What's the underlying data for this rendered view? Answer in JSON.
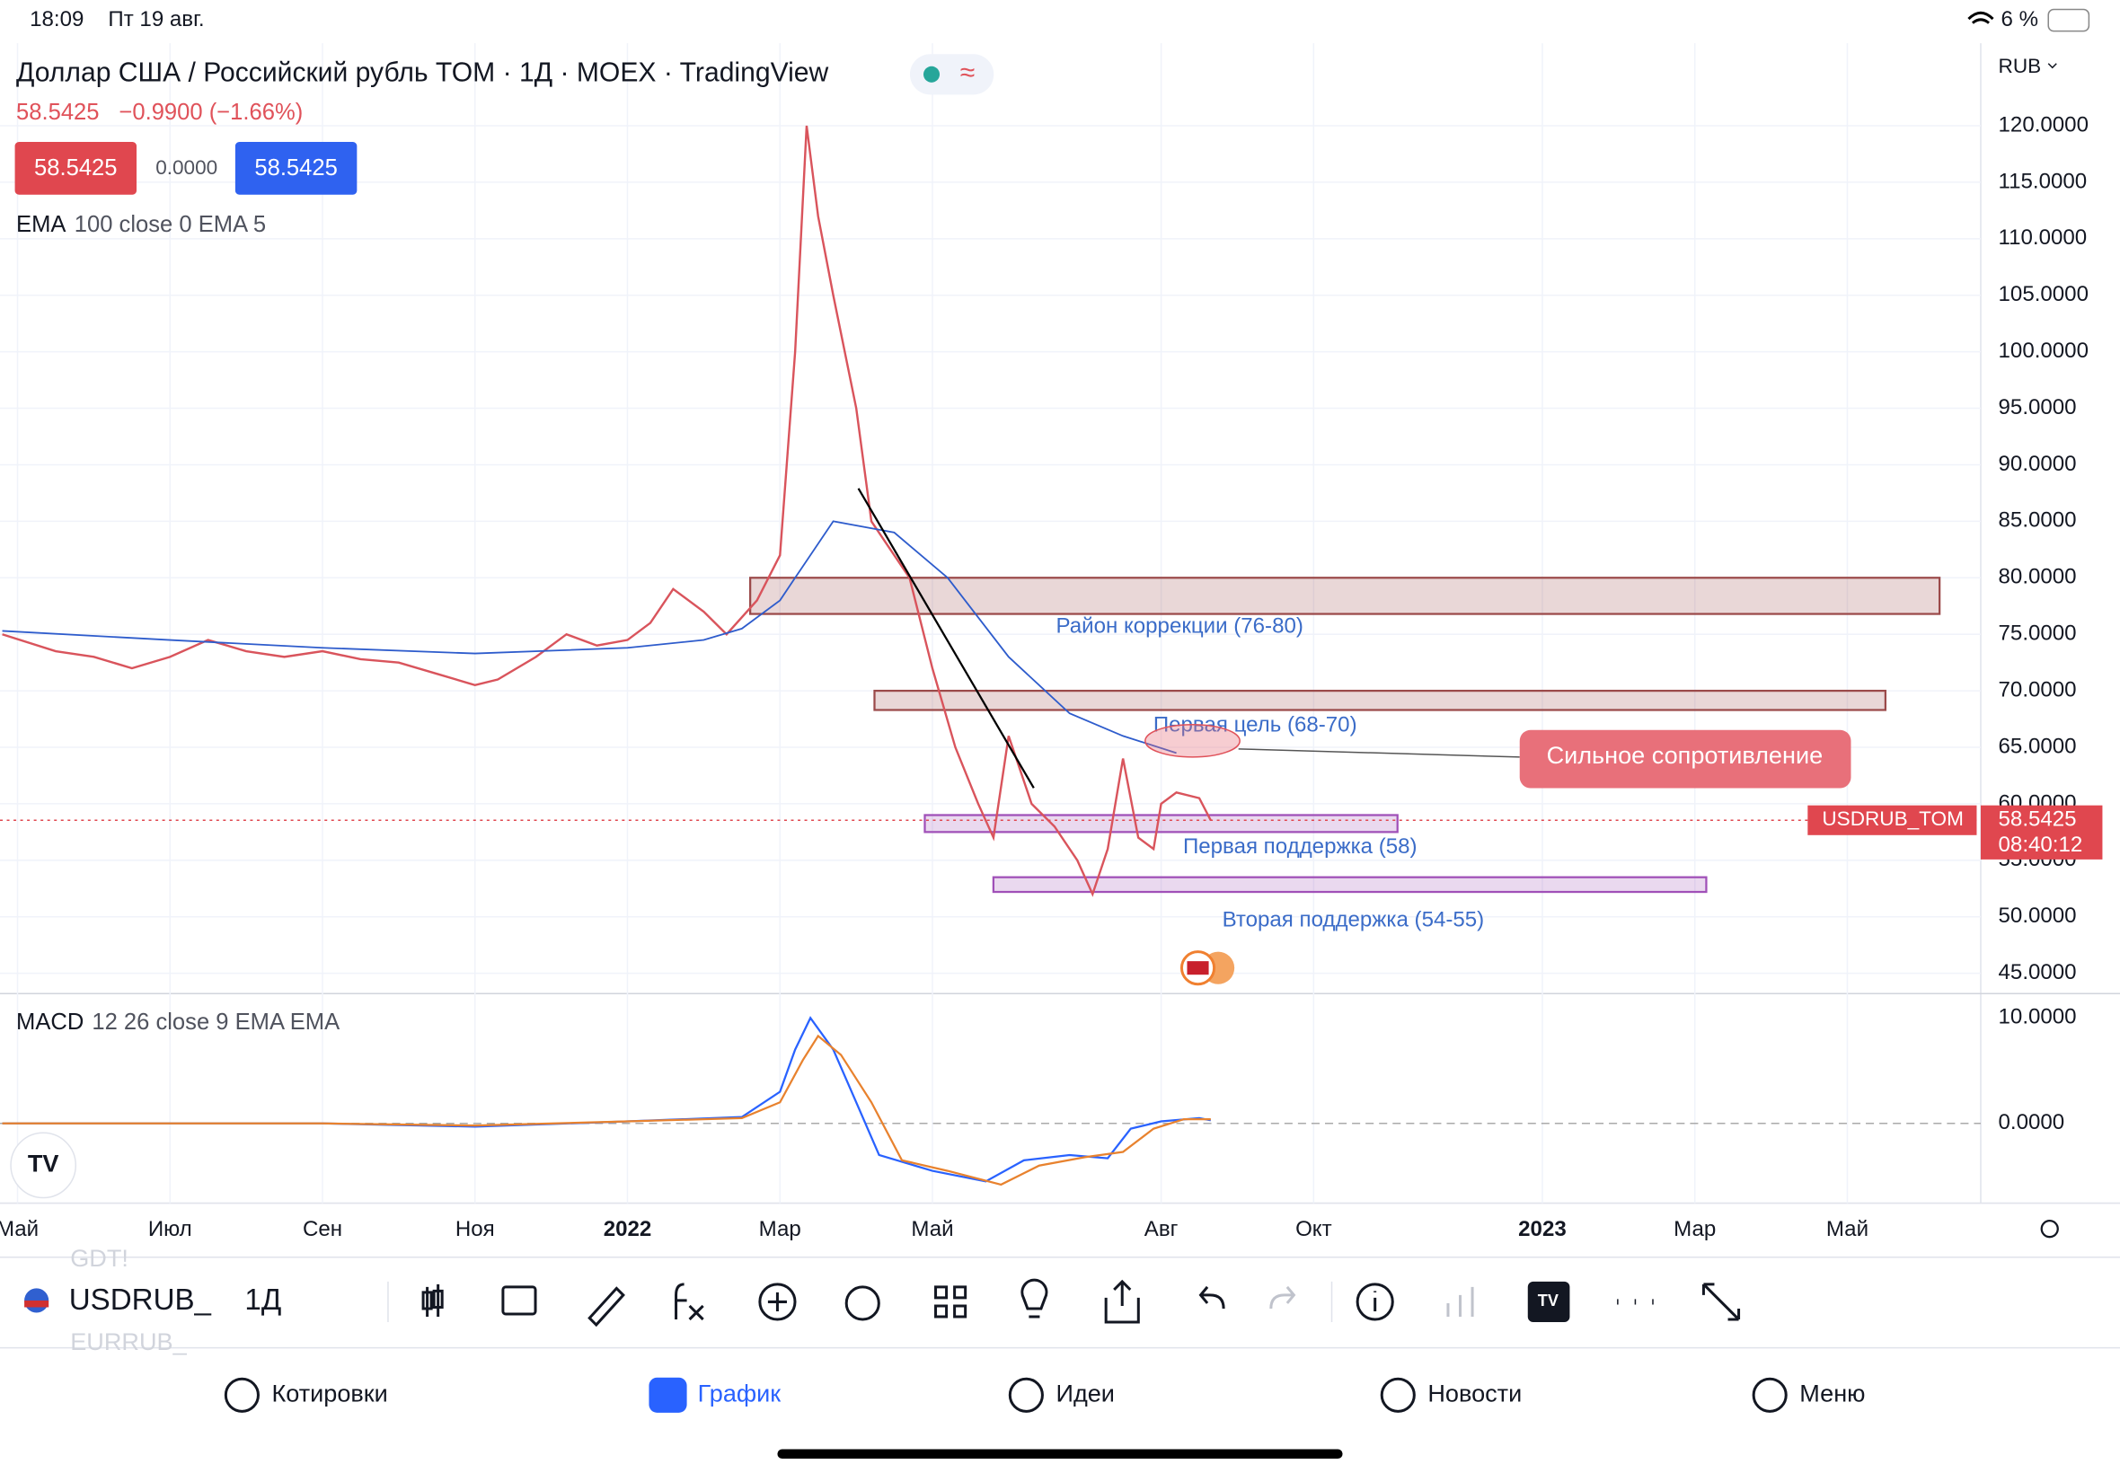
{
  "status_bar": {
    "time": "18:09",
    "date": "Пт 19 авг.",
    "battery": "6 %"
  },
  "chart_data": {
    "type": "line",
    "title": "Доллар США / Российский рубль TOM · 1Д · MOEX · TradingView",
    "last_price": 58.5425,
    "change": "−0.9900 (−1.66%)",
    "spread": "0.0000",
    "ema_name": "EMA",
    "ema_params": "100 close 0 EMA 5",
    "currency": "RUB",
    "symbol_label": "USDRUB_TOM",
    "countdown": "08:40:12",
    "xlim": [
      -0.23,
      25.75
    ],
    "xticks": [
      {
        "value": 0,
        "label": "Май"
      },
      {
        "value": 2,
        "label": "Июл"
      },
      {
        "value": 4,
        "label": "Сен"
      },
      {
        "value": 6,
        "label": "Ноя"
      },
      {
        "value": 8,
        "label": "2022"
      },
      {
        "value": 10,
        "label": "Мар"
      },
      {
        "value": 12,
        "label": "Май"
      },
      {
        "value": 15,
        "label": "Авг"
      },
      {
        "value": 17,
        "label": "Окт"
      },
      {
        "value": 20,
        "label": "2023"
      },
      {
        "value": 22,
        "label": "Мар"
      },
      {
        "value": 24,
        "label": "Май"
      }
    ],
    "ylim": [
      43.2,
      127.3
    ],
    "yticks": [
      {
        "value": 45,
        "label": "45.0000"
      },
      {
        "value": 50,
        "label": "50.0000"
      },
      {
        "value": 55,
        "label": "55.0000"
      },
      {
        "value": 60,
        "label": "60.0000"
      },
      {
        "value": 65,
        "label": "65.0000"
      },
      {
        "value": 70,
        "label": "70.0000"
      },
      {
        "value": 75,
        "label": "75.0000"
      },
      {
        "value": 80,
        "label": "80.0000"
      },
      {
        "value": 85,
        "label": "85.0000"
      },
      {
        "value": 90,
        "label": "90.0000"
      },
      {
        "value": 95,
        "label": "95.0000"
      },
      {
        "value": 100,
        "label": "100.0000"
      },
      {
        "value": 105,
        "label": "105.0000"
      },
      {
        "value": 110,
        "label": "110.0000"
      },
      {
        "value": 115,
        "label": "115.0000"
      },
      {
        "value": 120,
        "label": "120.0000"
      }
    ],
    "grid": true,
    "series": [
      {
        "name": "USDRUB_TOM",
        "color": "#d9545c",
        "x": [
          -0.2,
          0.5,
          1,
          1.5,
          2,
          2.5,
          3,
          3.5,
          4,
          4.5,
          5,
          5.5,
          6,
          6.3,
          6.8,
          7.2,
          7.6,
          8,
          8.3,
          8.6,
          9,
          9.3,
          9.7,
          10,
          10.2,
          10.35,
          10.5,
          10.7,
          11,
          11.2,
          11.5,
          11.7,
          12,
          12.3,
          12.6,
          12.8,
          13,
          13.3,
          13.6,
          13.9,
          14.1,
          14.3,
          14.5,
          14.7,
          14.9,
          15,
          15.2,
          15.5,
          15.65
        ],
        "values": [
          75,
          73.5,
          73,
          72,
          73,
          74.5,
          73.5,
          73,
          73.5,
          72.8,
          72.5,
          71.5,
          70.5,
          71,
          73,
          75,
          74,
          74.5,
          76,
          79,
          77,
          75,
          78,
          82,
          100,
          120,
          112,
          105,
          95,
          85,
          82,
          80,
          72,
          65,
          60,
          57,
          66,
          60,
          58,
          55,
          52,
          56,
          64,
          57,
          56,
          60,
          61,
          60.5,
          58.5425
        ]
      },
      {
        "name": "EMA",
        "color": "#2e5ccc",
        "x": [
          -0.2,
          2,
          4,
          6,
          8,
          9,
          9.5,
          10,
          10.2,
          10.7,
          11.5,
          12.2,
          13,
          13.8,
          14.5,
          15.2
        ],
        "values": [
          75.3,
          74.5,
          73.8,
          73.3,
          73.8,
          74.5,
          75.5,
          78,
          80,
          85,
          84,
          80,
          73,
          68,
          66,
          64.5
        ]
      }
    ],
    "zones": [
      {
        "label": "Район коррекции (76-80)",
        "low": 76.8,
        "high": 80,
        "start": 9.61,
        "end": 25.21,
        "color": "#9b4a4a"
      },
      {
        "label": "Первая цель (68-70)",
        "low": 68.3,
        "high": 70,
        "start": 11.24,
        "end": 24.5,
        "color": "#9b4a4a"
      },
      {
        "label": "Первая поддержка (58)",
        "low": 57.5,
        "high": 59,
        "start": 11.9,
        "end": 18.1,
        "color": "#a050b8"
      },
      {
        "label": "Вторая поддержка (54-55)",
        "low": 52.2,
        "high": 53.5,
        "start": 12.8,
        "end": 22.15,
        "color": "#a050b8"
      }
    ],
    "trendline": {
      "x": [
        11.03,
        13.33
      ],
      "values": [
        87.9,
        61.4
      ]
    },
    "callout": "Сильное сопротивление",
    "macd": {
      "label": "MACD",
      "params": "12 26 close 9 EMA EMA",
      "ylim": [
        -7.56,
        12.05
      ],
      "yticks": [
        {
          "value": 0,
          "label": "0.0000"
        },
        {
          "value": 10,
          "label": "10.0000"
        }
      ],
      "series": [
        {
          "name": "MACD",
          "color": "#2962ff",
          "x": [
            -0.2,
            4,
            6,
            8,
            9.5,
            10,
            10.2,
            10.4,
            10.7,
            11,
            11.3,
            12,
            12.7,
            13.2,
            13.8,
            14.3,
            14.6,
            15,
            15.5,
            15.65
          ],
          "values": [
            0,
            0,
            -0.3,
            0.2,
            0.6,
            3,
            7,
            10,
            7,
            2,
            -3,
            -4.5,
            -5.5,
            -3.5,
            -3,
            -3.3,
            -0.5,
            0.2,
            0.5,
            0.3
          ]
        },
        {
          "name": "Signal",
          "color": "#e8822e",
          "x": [
            -0.2,
            4,
            6,
            8,
            9.5,
            10,
            10.3,
            10.5,
            10.8,
            11.2,
            11.6,
            12.2,
            12.9,
            13.4,
            14,
            14.5,
            14.9,
            15.3,
            15.65
          ],
          "values": [
            0,
            0,
            -0.2,
            0.2,
            0.5,
            2,
            6,
            8.3,
            6.5,
            2,
            -3.5,
            -4.5,
            -5.8,
            -4,
            -3.2,
            -2.7,
            -0.5,
            0.4,
            0.4
          ]
        }
      ]
    }
  },
  "toolbar": {
    "symbol": "USDRUB_",
    "interval": "1Д",
    "ghost_above": "GDT!",
    "ghost_below": "EURRUB_"
  },
  "nav": {
    "items": [
      "Котировки",
      "График",
      "Идеи",
      "Новости",
      "Меню"
    ]
  }
}
